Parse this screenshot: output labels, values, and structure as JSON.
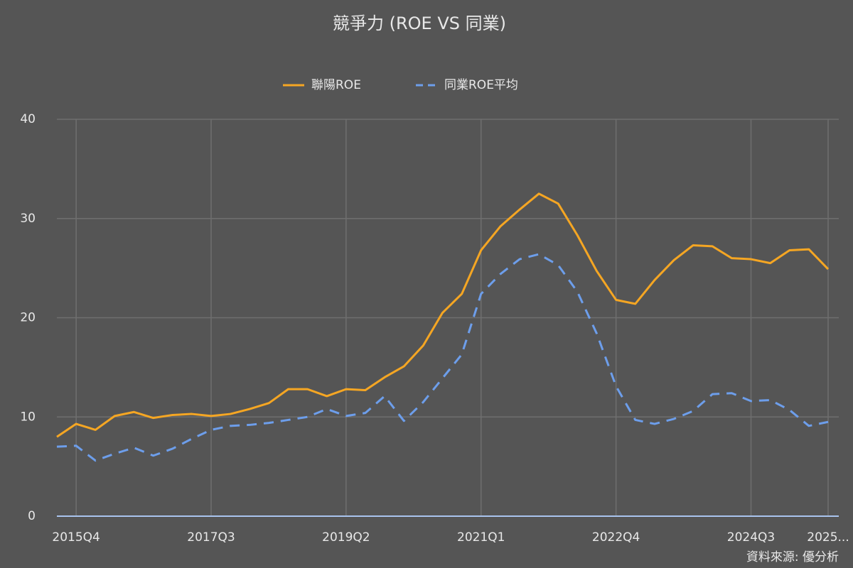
{
  "chart_data": {
    "type": "line",
    "title": "競爭力 (ROE VS 同業)",
    "categories": [
      null,
      "2015Q4",
      null,
      null,
      null,
      null,
      null,
      null,
      "2017Q3",
      null,
      null,
      null,
      null,
      null,
      null,
      "2019Q2",
      null,
      null,
      null,
      null,
      null,
      null,
      "2021Q1",
      null,
      null,
      null,
      null,
      null,
      null,
      "2022Q4",
      null,
      null,
      null,
      null,
      null,
      null,
      "2024Q3",
      null,
      null,
      null,
      "2025..."
    ],
    "series": [
      {
        "name": "聯陽ROE",
        "color": "#f5a623",
        "dash": "solid",
        "values": [
          8.0,
          9.3,
          8.7,
          10.1,
          10.5,
          9.9,
          10.2,
          10.3,
          10.1,
          10.3,
          10.8,
          11.4,
          12.8,
          12.8,
          12.1,
          12.8,
          12.7,
          14.0,
          15.1,
          17.2,
          20.5,
          22.4,
          26.8,
          29.2,
          30.9,
          32.5,
          31.5,
          28.3,
          24.7,
          21.8,
          21.4,
          23.8,
          25.8,
          27.3,
          27.2,
          26.0,
          25.9,
          25.5,
          26.8,
          26.9,
          24.9
        ]
      },
      {
        "name": "同業ROE平均",
        "color": "#6d9eeb",
        "dash": "dashed",
        "values": [
          7.0,
          7.1,
          5.6,
          6.3,
          6.9,
          6.1,
          6.8,
          7.8,
          8.7,
          9.1,
          9.2,
          9.4,
          9.7,
          10.0,
          10.8,
          10.1,
          10.4,
          12.1,
          9.6,
          11.5,
          13.9,
          16.3,
          22.4,
          24.4,
          25.9,
          26.4,
          25.3,
          22.6,
          18.4,
          13.1,
          9.7,
          9.3,
          9.8,
          10.6,
          12.3,
          12.4,
          11.6,
          11.7,
          10.7,
          9.1,
          9.5
        ]
      }
    ],
    "ylim": [
      0,
      40
    ],
    "yticks": [
      0,
      10,
      20,
      30,
      40
    ],
    "grid": true,
    "legend": "top",
    "source": "資料來源: 優分析"
  }
}
